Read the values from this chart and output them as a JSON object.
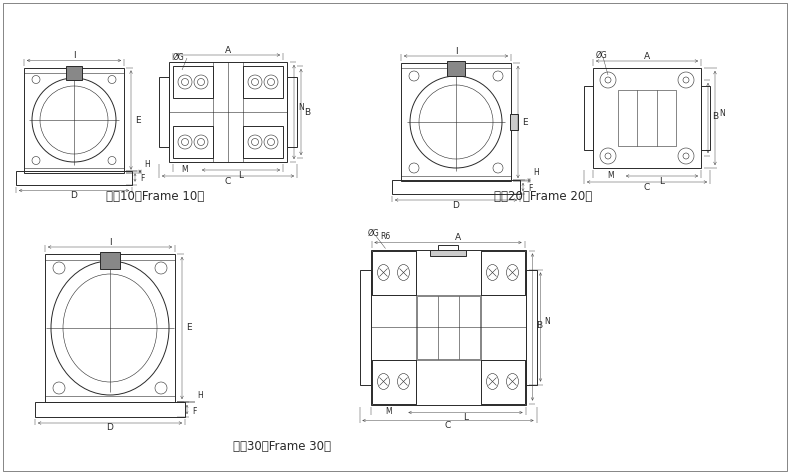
{
  "bg_color": "#ffffff",
  "line_color": "#2a2a2a",
  "frame_labels": [
    "机甄10（Frame 10）",
    "机甄20（Frame 20）",
    "机甄30（Frame 30）"
  ],
  "label_fontsize": 8.5,
  "dim_fontsize": 6.5,
  "small_fontsize": 5.5
}
